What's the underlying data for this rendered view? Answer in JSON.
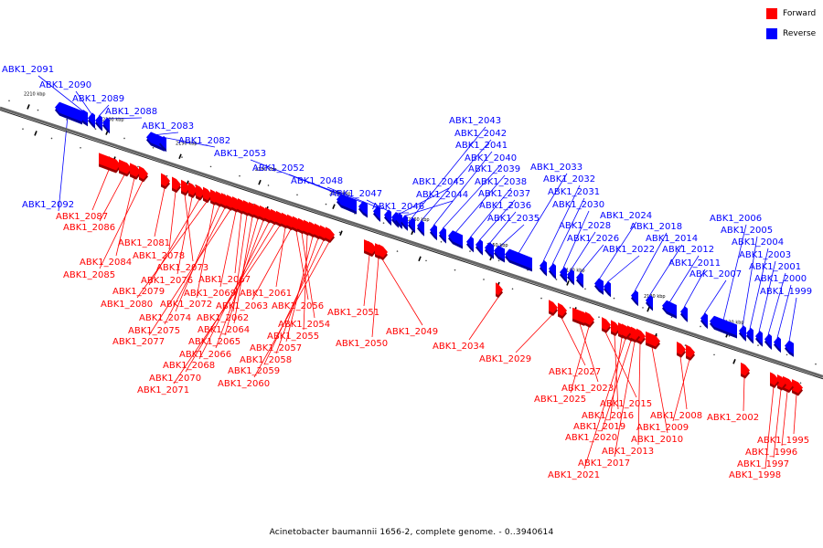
{
  "colors": {
    "forward": "#ff0000",
    "reverse": "#0000ff",
    "backbone": "#666666",
    "tick": "#000000"
  },
  "legend": {
    "forward": "Forward",
    "reverse": "Reverse"
  },
  "caption": "Acinetobacter baumannii 1656-2, complete genome. - 0..3940614",
  "scale_labels": [
    "2210 kbp",
    "2200 kbp",
    "2190 kbp",
    "2180 kbp",
    "2170 kbp",
    "2160 kbp",
    "2150 kbp",
    "2140 kbp",
    "2130 kbp",
    "2120 kbp"
  ],
  "genes": [
    {
      "id": "ABK1_2091",
      "strand": "reverse"
    },
    {
      "id": "ABK1_2090",
      "strand": "reverse"
    },
    {
      "id": "ABK1_2089",
      "strand": "reverse"
    },
    {
      "id": "ABK1_2088",
      "strand": "reverse"
    },
    {
      "id": "ABK1_2083",
      "strand": "reverse"
    },
    {
      "id": "ABK1_2082",
      "strand": "reverse"
    },
    {
      "id": "ABK1_2053",
      "strand": "reverse"
    },
    {
      "id": "ABK1_2052",
      "strand": "reverse"
    },
    {
      "id": "ABK1_2048",
      "strand": "reverse"
    },
    {
      "id": "ABK1_2047",
      "strand": "reverse"
    },
    {
      "id": "ABK1_2046",
      "strand": "reverse"
    },
    {
      "id": "ABK1_2092",
      "strand": "reverse"
    },
    {
      "id": "ABK1_2043",
      "strand": "reverse"
    },
    {
      "id": "ABK1_2042",
      "strand": "reverse"
    },
    {
      "id": "ABK1_2041",
      "strand": "reverse"
    },
    {
      "id": "ABK1_2040",
      "strand": "reverse"
    },
    {
      "id": "ABK1_2039",
      "strand": "reverse"
    },
    {
      "id": "ABK1_2038",
      "strand": "reverse"
    },
    {
      "id": "ABK1_2037",
      "strand": "reverse"
    },
    {
      "id": "ABK1_2036",
      "strand": "reverse"
    },
    {
      "id": "ABK1_2035",
      "strand": "reverse"
    },
    {
      "id": "ABK1_2045",
      "strand": "reverse"
    },
    {
      "id": "ABK1_2044",
      "strand": "reverse"
    },
    {
      "id": "ABK1_2033",
      "strand": "reverse"
    },
    {
      "id": "ABK1_2032",
      "strand": "reverse"
    },
    {
      "id": "ABK1_2031",
      "strand": "reverse"
    },
    {
      "id": "ABK1_2030",
      "strand": "reverse"
    },
    {
      "id": "ABK1_2024",
      "strand": "reverse"
    },
    {
      "id": "ABK1_2028",
      "strand": "reverse"
    },
    {
      "id": "ABK1_2018",
      "strand": "reverse"
    },
    {
      "id": "ABK1_2026",
      "strand": "reverse"
    },
    {
      "id": "ABK1_2014",
      "strand": "reverse"
    },
    {
      "id": "ABK1_2022",
      "strand": "reverse"
    },
    {
      "id": "ABK1_2012",
      "strand": "reverse"
    },
    {
      "id": "ABK1_2011",
      "strand": "reverse"
    },
    {
      "id": "ABK1_2007",
      "strand": "reverse"
    },
    {
      "id": "ABK1_2006",
      "strand": "reverse"
    },
    {
      "id": "ABK1_2005",
      "strand": "reverse"
    },
    {
      "id": "ABK1_2004",
      "strand": "reverse"
    },
    {
      "id": "ABK1_2003",
      "strand": "reverse"
    },
    {
      "id": "ABK1_2001",
      "strand": "reverse"
    },
    {
      "id": "ABK1_2000",
      "strand": "reverse"
    },
    {
      "id": "ABK1_1999",
      "strand": "reverse"
    },
    {
      "id": "ABK1_2087",
      "strand": "forward"
    },
    {
      "id": "ABK1_2086",
      "strand": "forward"
    },
    {
      "id": "ABK1_2084",
      "strand": "forward"
    },
    {
      "id": "ABK1_2085",
      "strand": "forward"
    },
    {
      "id": "ABK1_2081",
      "strand": "forward"
    },
    {
      "id": "ABK1_2078",
      "strand": "forward"
    },
    {
      "id": "ABK1_2073",
      "strand": "forward"
    },
    {
      "id": "ABK1_2076",
      "strand": "forward"
    },
    {
      "id": "ABK1_2079",
      "strand": "forward"
    },
    {
      "id": "ABK1_2080",
      "strand": "forward"
    },
    {
      "id": "ABK1_2072",
      "strand": "forward"
    },
    {
      "id": "ABK1_2074",
      "strand": "forward"
    },
    {
      "id": "ABK1_2075",
      "strand": "forward"
    },
    {
      "id": "ABK1_2077",
      "strand": "forward"
    },
    {
      "id": "ABK1_2069",
      "strand": "forward"
    },
    {
      "id": "ABK1_2067",
      "strand": "forward"
    },
    {
      "id": "ABK1_2062",
      "strand": "forward"
    },
    {
      "id": "ABK1_2064",
      "strand": "forward"
    },
    {
      "id": "ABK1_2065",
      "strand": "forward"
    },
    {
      "id": "ABK1_2066",
      "strand": "forward"
    },
    {
      "id": "ABK1_2068",
      "strand": "forward"
    },
    {
      "id": "ABK1_2070",
      "strand": "forward"
    },
    {
      "id": "ABK1_2071",
      "strand": "forward"
    },
    {
      "id": "ABK1_2061",
      "strand": "forward"
    },
    {
      "id": "ABK1_2063",
      "strand": "forward"
    },
    {
      "id": "ABK1_2056",
      "strand": "forward"
    },
    {
      "id": "ABK1_2054",
      "strand": "forward"
    },
    {
      "id": "ABK1_2055",
      "strand": "forward"
    },
    {
      "id": "ABK1_2057",
      "strand": "forward"
    },
    {
      "id": "ABK1_2058",
      "strand": "forward"
    },
    {
      "id": "ABK1_2059",
      "strand": "forward"
    },
    {
      "id": "ABK1_2060",
      "strand": "forward"
    },
    {
      "id": "ABK1_2051",
      "strand": "forward"
    },
    {
      "id": "ABK1_2050",
      "strand": "forward"
    },
    {
      "id": "ABK1_2049",
      "strand": "forward"
    },
    {
      "id": "ABK1_2034",
      "strand": "forward"
    },
    {
      "id": "ABK1_2029",
      "strand": "forward"
    },
    {
      "id": "ABK1_2027",
      "strand": "forward"
    },
    {
      "id": "ABK1_2023",
      "strand": "forward"
    },
    {
      "id": "ABK1_2025",
      "strand": "forward"
    },
    {
      "id": "ABK1_2015",
      "strand": "forward"
    },
    {
      "id": "ABK1_2016",
      "strand": "forward"
    },
    {
      "id": "ABK1_2008",
      "strand": "forward"
    },
    {
      "id": "ABK1_2019",
      "strand": "forward"
    },
    {
      "id": "ABK1_2009",
      "strand": "forward"
    },
    {
      "id": "ABK1_2020",
      "strand": "forward"
    },
    {
      "id": "ABK1_2010",
      "strand": "forward"
    },
    {
      "id": "ABK1_2013",
      "strand": "forward"
    },
    {
      "id": "ABK1_2017",
      "strand": "forward"
    },
    {
      "id": "ABK1_2021",
      "strand": "forward"
    },
    {
      "id": "ABK1_2002",
      "strand": "forward"
    },
    {
      "id": "ABK1_1995",
      "strand": "forward"
    },
    {
      "id": "ABK1_1996",
      "strand": "forward"
    },
    {
      "id": "ABK1_1997",
      "strand": "forward"
    },
    {
      "id": "ABK1_1998",
      "strand": "forward"
    }
  ]
}
